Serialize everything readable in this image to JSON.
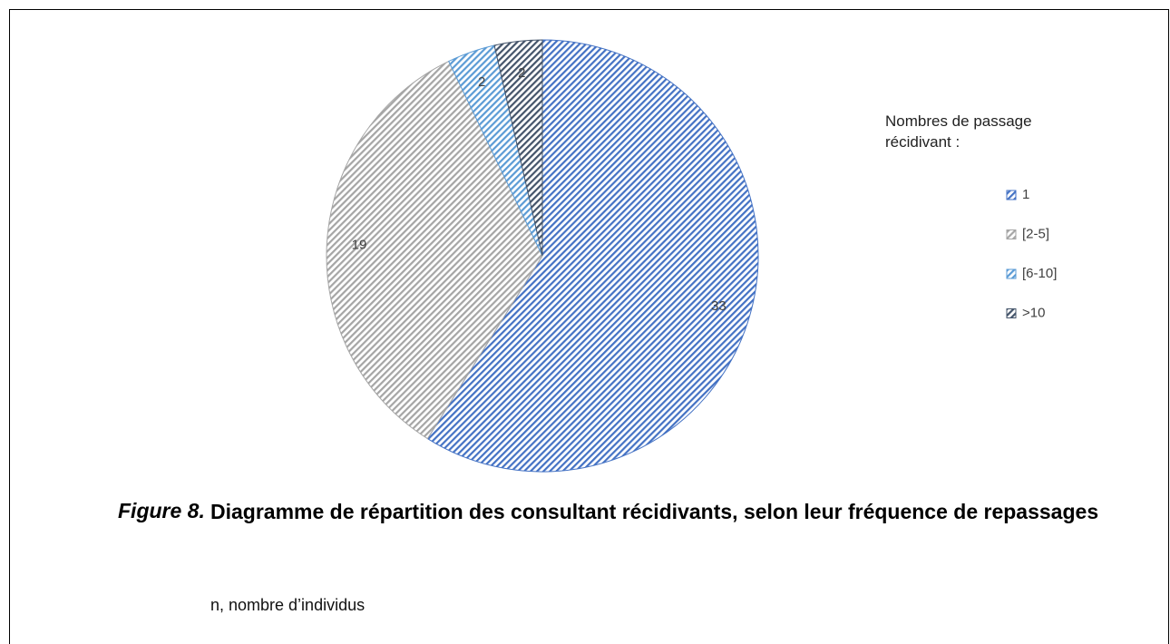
{
  "chart_data": {
    "type": "pie",
    "legend_title": "Nombres de passage récidivant :",
    "categories": [
      "1",
      "[2-5]",
      "[6-10]",
      ">10"
    ],
    "values": [
      33,
      19,
      2,
      2
    ],
    "colors": [
      "#4472c4",
      "#a5a5a5",
      "#5b9bd5",
      "#44546a"
    ],
    "figure_label": "Figure 8.",
    "title": "Diagramme de répartition des consultant récidivants, selon leur fréquence de repassages",
    "note": "n, nombre d’individus"
  }
}
